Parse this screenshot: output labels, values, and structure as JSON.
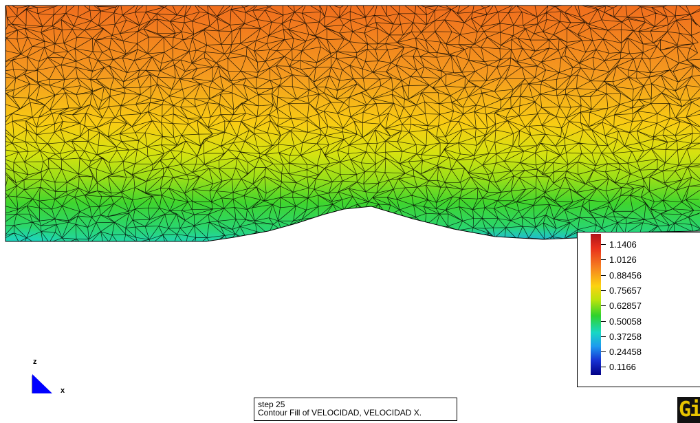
{
  "legend": {
    "values": [
      "1.1406",
      "1.0126",
      "0.88456",
      "0.75657",
      "0.62857",
      "0.50058",
      "0.37258",
      "0.24458",
      "0.1166"
    ]
  },
  "status": {
    "step": "step 25",
    "result": "Contour Fill of VELOCIDAD, VELOCIDAD X."
  },
  "axes": {
    "vertical": "z",
    "horizontal": "x"
  },
  "logo": {
    "text": "GiD"
  },
  "colors": {
    "max": "#b0141a",
    "high": "#f6821f",
    "mid": "#fcd20f",
    "low_mid": "#2fd22b",
    "cyan": "#18d7c4",
    "min": "#020086"
  },
  "icons": {
    "axis": "axis-triad-icon",
    "logo": "gid-logo-icon"
  }
}
